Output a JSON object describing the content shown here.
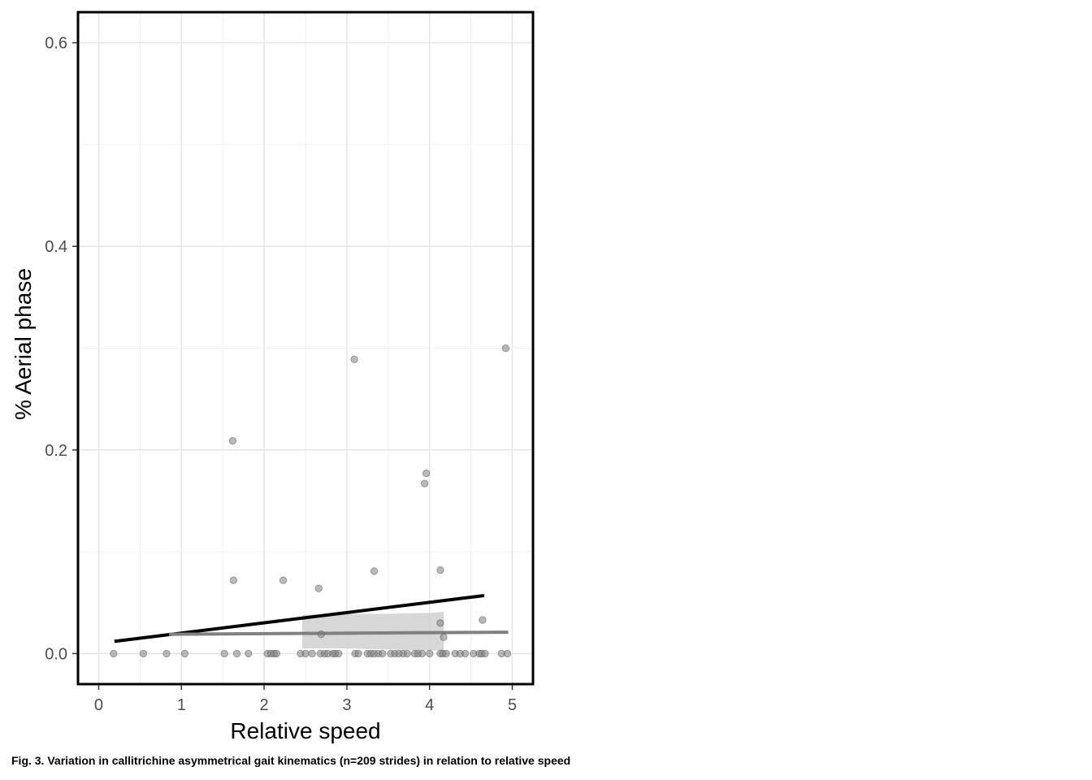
{
  "caption": "Fig. 3. Variation in callitrichine asymmetrical gait kinematics (n=209 strides) in relation to relative speed",
  "chart_data": {
    "type": "scatter",
    "xlabel": "Relative speed",
    "ylabel": "% Aerial phase",
    "xlim": [
      -0.25,
      5.25
    ],
    "ylim": [
      -0.03,
      0.63
    ],
    "xticks": [
      0,
      1,
      2,
      3,
      4,
      5
    ],
    "yticks": [
      0.0,
      0.2,
      0.4,
      0.6
    ],
    "xtick_labels": [
      "0",
      "1",
      "2",
      "3",
      "4",
      "5"
    ],
    "ytick_labels": [
      "0.0",
      "0.2",
      "0.4",
      "0.6"
    ],
    "grid": true,
    "colors": {
      "points": "#808080",
      "trend_dark": "#000000",
      "trend_gray": "#808080",
      "ribbon": "#d3d3d3"
    },
    "points": [
      {
        "x": 1.62,
        "y": 0.209
      },
      {
        "x": 3.09,
        "y": 0.289
      },
      {
        "x": 4.92,
        "y": 0.3
      },
      {
        "x": 3.96,
        "y": 0.177
      },
      {
        "x": 3.94,
        "y": 0.167
      },
      {
        "x": 1.63,
        "y": 0.072
      },
      {
        "x": 2.23,
        "y": 0.072
      },
      {
        "x": 2.66,
        "y": 0.064
      },
      {
        "x": 3.33,
        "y": 0.081
      },
      {
        "x": 4.13,
        "y": 0.082
      },
      {
        "x": 4.64,
        "y": 0.033
      },
      {
        "x": 4.13,
        "y": 0.03
      },
      {
        "x": 2.69,
        "y": 0.019
      },
      {
        "x": 4.17,
        "y": 0.016
      },
      {
        "x": 0.18,
        "y": 0.0
      },
      {
        "x": 0.54,
        "y": 0.0
      },
      {
        "x": 0.82,
        "y": 0.0
      },
      {
        "x": 1.04,
        "y": 0.0
      },
      {
        "x": 1.52,
        "y": 0.0
      },
      {
        "x": 1.67,
        "y": 0.0
      },
      {
        "x": 1.81,
        "y": 0.0
      },
      {
        "x": 2.04,
        "y": 0.0
      },
      {
        "x": 2.08,
        "y": 0.0
      },
      {
        "x": 2.12,
        "y": 0.0
      },
      {
        "x": 2.15,
        "y": 0.0
      },
      {
        "x": 2.44,
        "y": 0.0
      },
      {
        "x": 2.5,
        "y": 0.0
      },
      {
        "x": 2.58,
        "y": 0.0
      },
      {
        "x": 2.68,
        "y": 0.0
      },
      {
        "x": 2.73,
        "y": 0.0
      },
      {
        "x": 2.77,
        "y": 0.0
      },
      {
        "x": 2.83,
        "y": 0.0
      },
      {
        "x": 2.86,
        "y": 0.0
      },
      {
        "x": 2.9,
        "y": 0.0
      },
      {
        "x": 3.1,
        "y": 0.0
      },
      {
        "x": 3.14,
        "y": 0.0
      },
      {
        "x": 3.25,
        "y": 0.0
      },
      {
        "x": 3.29,
        "y": 0.0
      },
      {
        "x": 3.33,
        "y": 0.0
      },
      {
        "x": 3.38,
        "y": 0.0
      },
      {
        "x": 3.43,
        "y": 0.0
      },
      {
        "x": 3.53,
        "y": 0.0
      },
      {
        "x": 3.58,
        "y": 0.0
      },
      {
        "x": 3.63,
        "y": 0.0
      },
      {
        "x": 3.68,
        "y": 0.0
      },
      {
        "x": 3.73,
        "y": 0.0
      },
      {
        "x": 3.82,
        "y": 0.0
      },
      {
        "x": 3.86,
        "y": 0.0
      },
      {
        "x": 3.91,
        "y": 0.0
      },
      {
        "x": 4.0,
        "y": 0.0
      },
      {
        "x": 4.13,
        "y": 0.0
      },
      {
        "x": 4.16,
        "y": 0.0
      },
      {
        "x": 4.2,
        "y": 0.0
      },
      {
        "x": 4.31,
        "y": 0.0
      },
      {
        "x": 4.37,
        "y": 0.0
      },
      {
        "x": 4.43,
        "y": 0.0
      },
      {
        "x": 4.53,
        "y": 0.0
      },
      {
        "x": 4.6,
        "y": 0.0
      },
      {
        "x": 4.63,
        "y": 0.0
      },
      {
        "x": 4.67,
        "y": 0.0
      },
      {
        "x": 4.87,
        "y": 0.0
      },
      {
        "x": 4.94,
        "y": 0.0
      }
    ],
    "trend_lines": [
      {
        "color": "#000000",
        "x": [
          0.19,
          4.66
        ],
        "y": [
          0.012,
          0.057
        ]
      },
      {
        "color": "#808080",
        "x": [
          0.85,
          4.95
        ],
        "y": [
          0.019,
          0.021
        ]
      }
    ],
    "ribbon": {
      "x": [
        2.46,
        3.0,
        3.5,
        4.0,
        4.17
      ],
      "upper": [
        0.038,
        0.039,
        0.039,
        0.04,
        0.041
      ],
      "lower": [
        0.005,
        0.005,
        0.004,
        0.003,
        0.003
      ]
    }
  }
}
